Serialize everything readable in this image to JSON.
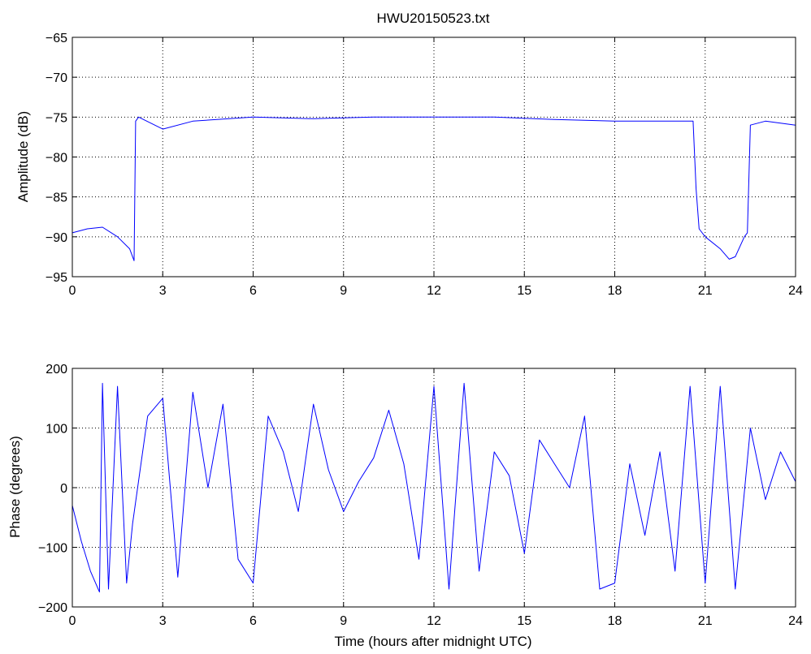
{
  "chart_data": [
    {
      "type": "line",
      "title": "HWU20150523.txt",
      "xlabel": "",
      "ylabel": "Amplitude (dB)",
      "xlim": [
        0,
        24
      ],
      "ylim": [
        -95,
        -65
      ],
      "xticks": [
        0,
        3,
        6,
        9,
        12,
        15,
        18,
        21,
        24
      ],
      "yticks": [
        -65,
        -70,
        -75,
        -80,
        -85,
        -90,
        -95
      ],
      "xtick_labels": [
        "0",
        "3",
        "6",
        "9",
        "12",
        "15",
        "18",
        "21",
        "24"
      ],
      "ytick_labels": [
        "−65",
        "−70",
        "−75",
        "−80",
        "−85",
        "−90",
        "−95"
      ],
      "grid": true,
      "color": "#0000ff",
      "series": [
        {
          "x": [
            0,
            0.5,
            1.0,
            1.5,
            1.9,
            2.05,
            2.1,
            2.2,
            3.0,
            4.0,
            6.0,
            8.0,
            10.0,
            12.0,
            14.0,
            16.0,
            18.0,
            20.0,
            20.6,
            20.7,
            20.8,
            21.0,
            21.5,
            21.8,
            22.0,
            22.3,
            22.4,
            22.5,
            23.0,
            24.0
          ],
          "y": [
            -89.5,
            -89.0,
            -88.8,
            -90.0,
            -91.5,
            -93.0,
            -75.5,
            -75.0,
            -76.5,
            -75.5,
            -75.0,
            -75.2,
            -75.0,
            -75.0,
            -75.0,
            -75.3,
            -75.5,
            -75.5,
            -75.5,
            -84.0,
            -89.0,
            -90.0,
            -91.5,
            -92.8,
            -92.5,
            -90.0,
            -89.5,
            -76.0,
            -75.5,
            -76.0
          ]
        }
      ]
    },
    {
      "type": "line",
      "title": "",
      "xlabel": "Time (hours after midnight UTC)",
      "ylabel": "Phase (degrees)",
      "xlim": [
        0,
        24
      ],
      "ylim": [
        -200,
        200
      ],
      "xticks": [
        0,
        3,
        6,
        9,
        12,
        15,
        18,
        21,
        24
      ],
      "yticks": [
        200,
        100,
        0,
        -100,
        -200
      ],
      "xtick_labels": [
        "0",
        "3",
        "6",
        "9",
        "12",
        "15",
        "18",
        "21",
        "24"
      ],
      "ytick_labels": [
        "200",
        "100",
        "0",
        "−100",
        "−200"
      ],
      "grid": true,
      "color": "#0000ff",
      "series": [
        {
          "x": [
            0,
            0.3,
            0.6,
            0.9,
            1.0,
            1.2,
            1.5,
            1.8,
            2.0,
            2.5,
            3.0,
            3.5,
            4.0,
            4.5,
            5.0,
            5.5,
            6.0,
            6.5,
            7.0,
            7.5,
            8.0,
            8.5,
            9.0,
            9.5,
            10.0,
            10.5,
            11.0,
            11.5,
            12.0,
            12.5,
            13.0,
            13.5,
            14.0,
            14.5,
            15.0,
            15.5,
            16.0,
            16.5,
            17.0,
            17.5,
            18.0,
            18.5,
            19.0,
            19.5,
            20.0,
            20.5,
            21.0,
            21.5,
            22.0,
            22.5,
            23.0,
            23.5,
            24.0
          ],
          "y": [
            -30,
            -90,
            -140,
            -175,
            175,
            -170,
            170,
            -160,
            -60,
            120,
            150,
            -150,
            160,
            0,
            140,
            -120,
            -160,
            120,
            60,
            -40,
            140,
            30,
            -40,
            10,
            50,
            130,
            40,
            -120,
            170,
            -170,
            175,
            -140,
            60,
            20,
            -110,
            80,
            40,
            0,
            120,
            -170,
            -160,
            40,
            -80,
            60,
            -140,
            170,
            -160,
            170,
            -170,
            100,
            -20,
            60,
            10
          ]
        }
      ]
    }
  ]
}
